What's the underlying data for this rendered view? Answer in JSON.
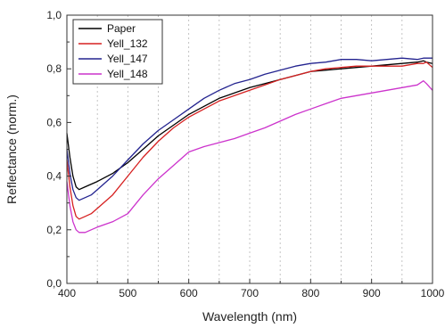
{
  "chart_data": {
    "type": "line",
    "xlabel": "Wavelength (nm)",
    "ylabel": "Reflectance (norm.)",
    "xlim": [
      400,
      1000
    ],
    "ylim": [
      0.0,
      1.0
    ],
    "x_ticks": [
      400,
      500,
      600,
      700,
      800,
      900,
      1000
    ],
    "x_tick_labels": [
      "400",
      "500",
      "600",
      "700",
      "800",
      "900",
      "1000"
    ],
    "y_ticks": [
      0.0,
      0.2,
      0.4,
      0.6,
      0.8,
      1.0
    ],
    "y_tick_labels": [
      "0,0",
      "0,2",
      "0,4",
      "0,6",
      "0,8",
      "1,0"
    ],
    "grid": "vertical-dashed",
    "legend_position": "top-left",
    "series": [
      {
        "name": "Paper",
        "color": "#000000",
        "x": [
          400,
          405,
          410,
          415,
          420,
          430,
          440,
          450,
          475,
          500,
          525,
          550,
          575,
          600,
          625,
          650,
          675,
          700,
          725,
          750,
          775,
          800,
          825,
          850,
          875,
          900,
          925,
          950,
          975,
          985,
          990,
          1000
        ],
        "y": [
          0.56,
          0.47,
          0.4,
          0.36,
          0.35,
          0.36,
          0.37,
          0.38,
          0.41,
          0.45,
          0.5,
          0.55,
          0.59,
          0.63,
          0.66,
          0.69,
          0.71,
          0.73,
          0.745,
          0.76,
          0.775,
          0.79,
          0.795,
          0.8,
          0.805,
          0.81,
          0.815,
          0.82,
          0.825,
          0.83,
          0.825,
          0.82
        ]
      },
      {
        "name": "Yell_132",
        "color": "#d62020",
        "x": [
          400,
          405,
          410,
          415,
          420,
          430,
          440,
          450,
          475,
          500,
          525,
          550,
          575,
          600,
          625,
          650,
          675,
          700,
          725,
          750,
          775,
          800,
          825,
          850,
          875,
          900,
          925,
          950,
          975,
          985,
          990,
          1000
        ],
        "y": [
          0.46,
          0.36,
          0.29,
          0.25,
          0.24,
          0.25,
          0.26,
          0.28,
          0.33,
          0.4,
          0.47,
          0.53,
          0.58,
          0.62,
          0.65,
          0.68,
          0.7,
          0.72,
          0.74,
          0.76,
          0.775,
          0.79,
          0.8,
          0.805,
          0.81,
          0.81,
          0.81,
          0.81,
          0.82,
          0.82,
          0.825,
          0.805
        ]
      },
      {
        "name": "Yell_147",
        "color": "#23238f",
        "x": [
          400,
          405,
          410,
          415,
          420,
          430,
          440,
          450,
          475,
          500,
          525,
          550,
          575,
          600,
          625,
          650,
          675,
          700,
          725,
          750,
          775,
          800,
          825,
          850,
          875,
          900,
          925,
          950,
          975,
          985,
          990,
          1000
        ],
        "y": [
          0.5,
          0.41,
          0.35,
          0.32,
          0.31,
          0.32,
          0.33,
          0.35,
          0.4,
          0.46,
          0.52,
          0.57,
          0.61,
          0.65,
          0.69,
          0.72,
          0.745,
          0.76,
          0.78,
          0.795,
          0.81,
          0.82,
          0.825,
          0.835,
          0.835,
          0.83,
          0.835,
          0.84,
          0.835,
          0.84,
          0.84,
          0.84
        ]
      },
      {
        "name": "Yell_148",
        "color": "#cc33cc",
        "x": [
          400,
          405,
          410,
          415,
          420,
          430,
          440,
          450,
          475,
          500,
          525,
          550,
          575,
          600,
          625,
          650,
          675,
          700,
          725,
          750,
          775,
          800,
          825,
          850,
          875,
          900,
          925,
          950,
          975,
          985,
          990,
          1000
        ],
        "y": [
          0.38,
          0.29,
          0.23,
          0.2,
          0.19,
          0.19,
          0.2,
          0.21,
          0.23,
          0.26,
          0.33,
          0.39,
          0.44,
          0.49,
          0.51,
          0.525,
          0.54,
          0.56,
          0.58,
          0.605,
          0.63,
          0.65,
          0.67,
          0.69,
          0.7,
          0.71,
          0.72,
          0.73,
          0.74,
          0.755,
          0.745,
          0.72
        ]
      }
    ]
  }
}
